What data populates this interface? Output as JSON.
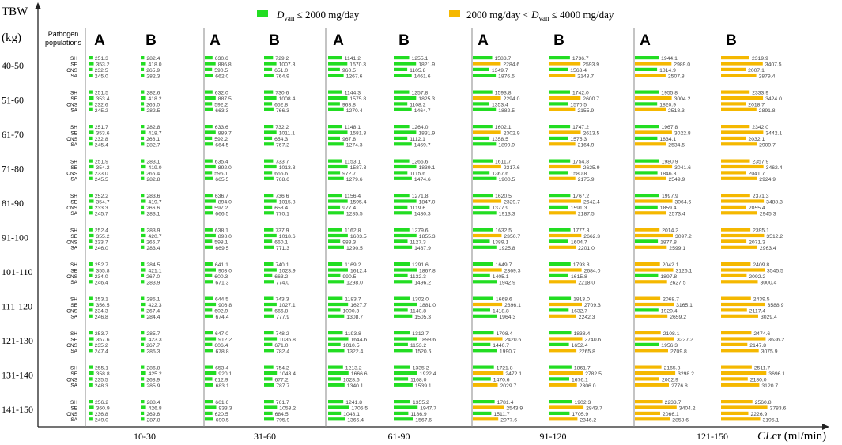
{
  "chart_data": {
    "type": "bar",
    "ylabel_line1": "TBW",
    "ylabel_line2": "(kg)",
    "xlabel_italic": "CL",
    "xlabel_rest": "cr (ml/min)",
    "pathogen_header_line1": "Pathogen",
    "pathogen_header_line2": "populations",
    "pathogens": [
      "SH",
      "SE",
      "CNS",
      "SA"
    ],
    "tbw_groups": [
      "40-50",
      "51-60",
      "61-70",
      "71-80",
      "81-90",
      "91-100",
      "101-110",
      "111-120",
      "121-130",
      "131-140",
      "141-150"
    ],
    "clcr_groups": [
      "10-30",
      "31-60",
      "61-90",
      "91-120",
      "121-150"
    ],
    "panel_labels": [
      "A",
      "B"
    ],
    "legend": [
      {
        "label": "D_van ≤ 2000 mg/day",
        "color": "#22dd22"
      },
      {
        "label": "2000 mg/day < D_van ≤ 4000 mg/day",
        "color": "#f5b800"
      }
    ],
    "legend_text": [
      {
        "pre": "",
        "sym": "D",
        "sub": "van",
        "post": " ≤ 2000 mg/day"
      },
      {
        "pre": "2000 mg/day < ",
        "sym": "D",
        "sub": "van",
        "post": " ≤ 4000 mg/day"
      }
    ],
    "max_value": 4000,
    "values": [
      [
        [
          [
            251.3,
            353.2,
            232.5,
            245.0
          ],
          [
            282.4,
            418.0,
            265.9,
            282.3
          ]
        ],
        [
          [
            630.6,
            886.8,
            590.5,
            662.0
          ],
          [
            729.2,
            1007.3,
            651.0,
            764.9
          ]
        ],
        [
          [
            1141.2,
            1570.3,
            960.5,
            1267.6
          ],
          [
            1255.1,
            1821.9,
            1105.8,
            1461.6
          ]
        ],
        [
          [
            1583.7,
            2284.6,
            1349.7,
            1876.5
          ],
          [
            1736.7,
            2593.9,
            1563.4,
            2148.7
          ]
        ],
        [
          [
            1944.1,
            2989.0,
            1814.9,
            2507.8
          ],
          [
            2319.9,
            3407.5,
            2007.1,
            2879.4
          ]
        ]
      ],
      [
        [
          [
            251.5,
            353.4,
            232.6,
            245.2
          ],
          [
            282.6,
            418.2,
            266.0,
            282.5
          ]
        ],
        [
          [
            632.0,
            887.5,
            592.2,
            663.3
          ],
          [
            730.6,
            1008.4,
            652.8,
            766.3
          ]
        ],
        [
          [
            1144.3,
            1575.8,
            963.8,
            1270.4
          ],
          [
            1257.8,
            1825.3,
            1108.2,
            1464.7
          ]
        ],
        [
          [
            1593.8,
            2294.0,
            1353.4,
            1882.5
          ],
          [
            1742.0,
            2600.7,
            1570.5,
            2155.9
          ]
        ],
        [
          [
            1955.8,
            3004.2,
            1820.9,
            2518.3
          ],
          [
            2333.9,
            3424.0,
            2018.7,
            2891.8
          ]
        ]
      ],
      [
        [
          [
            251.7,
            353.6,
            232.8,
            245.4
          ],
          [
            282.8,
            418.7,
            266.1,
            282.7
          ]
        ],
        [
          [
            633.6,
            889.7,
            592.2,
            664.5
          ],
          [
            732.2,
            1011.1,
            654.3,
            767.2
          ]
        ],
        [
          [
            1148.1,
            1581.3,
            967.8,
            1274.3
          ],
          [
            1264.0,
            1831.9,
            1112.1,
            1469.7
          ]
        ],
        [
          [
            1602.1,
            2302.9,
            1358.5,
            1890.9
          ],
          [
            1747.2,
            2613.5,
            1575.3,
            2164.9
          ]
        ],
        [
          [
            1967.8,
            3022.8,
            1834.1,
            2534.5
          ],
          [
            2342.0,
            3442.1,
            2032.1,
            2909.7
          ]
        ]
      ],
      [
        [
          [
            251.9,
            354.2,
            233.0,
            245.5
          ],
          [
            283.1,
            419.0,
            266.4,
            282.8
          ]
        ],
        [
          [
            635.4,
            892.0,
            595.1,
            665.5
          ],
          [
            733.7,
            1013.3,
            655.6,
            768.6
          ]
        ],
        [
          [
            1153.1,
            1587.3,
            972.7,
            1279.6
          ],
          [
            1266.6,
            1839.1,
            1115.6,
            1474.6
          ]
        ],
        [
          [
            1611.7,
            2317.6,
            1367.6,
            1900.5
          ],
          [
            1754.8,
            2625.9,
            1580.8,
            2175.9
          ]
        ],
        [
          [
            1980.9,
            3041.6,
            1846.3,
            2549.9
          ],
          [
            2357.9,
            3462.4,
            2041.7,
            2924.9
          ]
        ]
      ],
      [
        [
          [
            252.2,
            354.7,
            233.3,
            245.7
          ],
          [
            283.6,
            419.7,
            266.6,
            283.1
          ]
        ],
        [
          [
            636.7,
            894.0,
            597.2,
            666.5
          ],
          [
            736.6,
            1015.8,
            658.4,
            770.1
          ]
        ],
        [
          [
            1156.4,
            1595.4,
            977.4,
            1285.5
          ],
          [
            1271.8,
            1847.0,
            1119.6,
            1480.3
          ]
        ],
        [
          [
            1620.5,
            2329.7,
            1377.9,
            1913.3
          ],
          [
            1767.2,
            2642.4,
            1591.3,
            2187.5
          ]
        ],
        [
          [
            1997.9,
            3064.6,
            1859.4,
            2573.4
          ],
          [
            2371.3,
            3488.3,
            2055.4,
            2945.3
          ]
        ]
      ],
      [
        [
          [
            252.4,
            355.2,
            233.7,
            246.0
          ],
          [
            283.9,
            420.7,
            266.7,
            283.4
          ]
        ],
        [
          [
            638.1,
            898.0,
            598.1,
            669.5
          ],
          [
            737.9,
            1018.6,
            660.1,
            771.3
          ]
        ],
        [
          [
            1162.8,
            1603.5,
            983.3,
            1290.5
          ],
          [
            1279.6,
            1855.3,
            1127.3,
            1487.9
          ]
        ],
        [
          [
            1632.5,
            2350.7,
            1389.1,
            1925.8
          ],
          [
            1777.8,
            2662.3,
            1604.7,
            2201.0
          ]
        ],
        [
          [
            2014.2,
            3097.2,
            1877.8,
            2599.1
          ],
          [
            2395.1,
            3512.2,
            2071.3,
            2963.4
          ]
        ]
      ],
      [
        [
          [
            252.7,
            355.8,
            234.0,
            246.4
          ],
          [
            284.5,
            421.1,
            267.0,
            283.9
          ]
        ],
        [
          [
            641.1,
            903.0,
            600.3,
            671.3
          ],
          [
            740.1,
            1023.9,
            663.2,
            774.0
          ]
        ],
        [
          [
            1169.2,
            1612.4,
            990.5,
            1298.0
          ],
          [
            1291.6,
            1867.8,
            1132.3,
            1496.2
          ]
        ],
        [
          [
            1649.7,
            2369.3,
            1405.1,
            1942.9
          ],
          [
            1793.8,
            2684.0,
            1615.8,
            2218.0
          ]
        ],
        [
          [
            2042.1,
            3126.1,
            1897.8,
            2627.5
          ],
          [
            2409.8,
            3545.5,
            2092.2,
            3000.4
          ]
        ]
      ],
      [
        [
          [
            253.1,
            356.5,
            234.3,
            246.8
          ],
          [
            285.1,
            422.3,
            267.4,
            284.4
          ]
        ],
        [
          [
            644.5,
            906.8,
            602.9,
            674.4
          ],
          [
            743.3,
            1027.1,
            666.8,
            777.9
          ]
        ],
        [
          [
            1183.7,
            1627.7,
            1000.3,
            1308.7
          ],
          [
            1302.0,
            1881.0,
            1140.8,
            1505.3
          ]
        ],
        [
          [
            1668.6,
            2396.1,
            1418.8,
            1964.3
          ],
          [
            1813.0,
            2709.3,
            1632.7,
            2242.3
          ]
        ],
        [
          [
            2068.7,
            3165.1,
            1920.4,
            2659.2
          ],
          [
            2439.5,
            3588.9,
            2117.4,
            3029.4
          ]
        ]
      ],
      [
        [
          [
            253.7,
            357.6,
            235.2,
            247.4
          ],
          [
            285.7,
            423.3,
            267.7,
            285.3
          ]
        ],
        [
          [
            647.0,
            912.2,
            606.4,
            678.8
          ],
          [
            748.2,
            1035.8,
            671.0,
            782.4
          ]
        ],
        [
          [
            1193.8,
            1644.6,
            1010.5,
            1322.4
          ],
          [
            1312.7,
            1898.6,
            1153.2,
            1520.6
          ]
        ],
        [
          [
            1708.4,
            2420.6,
            1440.7,
            1990.7
          ],
          [
            1838.4,
            2740.6,
            1652.4,
            2265.8
          ]
        ],
        [
          [
            2108.1,
            3227.2,
            1956.3,
            2709.8
          ],
          [
            2474.6,
            3636.2,
            2147.8,
            3075.9
          ]
        ]
      ],
      [
        [
          [
            255.1,
            358.8,
            235.5,
            248.3
          ],
          [
            286.8,
            425.2,
            268.9,
            285.9
          ]
        ],
        [
          [
            653.4,
            920.1,
            612.9,
            683.1
          ],
          [
            754.2,
            1043.4,
            677.2,
            787.7
          ]
        ],
        [
          [
            1213.2,
            1666.6,
            1028.6,
            1340.1
          ],
          [
            1335.2,
            1922.4,
            1168.0,
            1539.1
          ]
        ],
        [
          [
            1721.8,
            2472.1,
            1470.6,
            2029.7
          ],
          [
            1861.7,
            2782.5,
            1676.1,
            2306.0
          ]
        ],
        [
          [
            2165.8,
            3298.2,
            2002.9,
            2776.8
          ],
          [
            2511.7,
            3696.1,
            2180.0,
            3120.7
          ]
        ]
      ],
      [
        [
          [
            256.2,
            360.9,
            236.8,
            249.0
          ],
          [
            288.4,
            426.8,
            269.6,
            287.8
          ]
        ],
        [
          [
            661.6,
            933.3,
            620.5,
            690.5
          ],
          [
            761.7,
            1053.2,
            684.5,
            795.9
          ]
        ],
        [
          [
            1241.8,
            1705.5,
            1048.1,
            1366.4
          ],
          [
            1355.2,
            1947.7,
            1186.9,
            1567.6
          ]
        ],
        [
          [
            1781.4,
            2543.9,
            1511.7,
            2077.6
          ],
          [
            1902.3,
            2843.7,
            1705.9,
            2346.2
          ]
        ],
        [
          [
            2233.7,
            3404.2,
            2066.1,
            2858.6
          ],
          [
            2560.8,
            3783.6,
            2226.9,
            3195.1
          ]
        ]
      ]
    ]
  }
}
